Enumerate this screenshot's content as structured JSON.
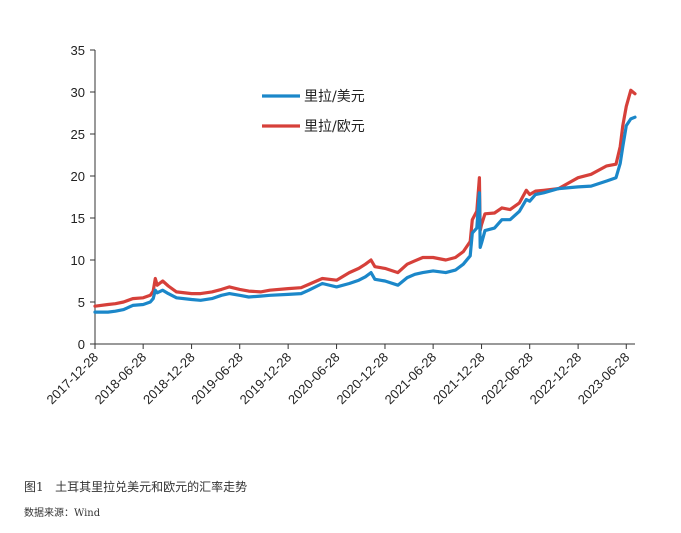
{
  "caption": {
    "figure_no": "图1",
    "title": "土耳其里拉兑美元和欧元的汇率走势"
  },
  "source": "数据来源：Wind",
  "chart_data": {
    "type": "line",
    "ylim": [
      0,
      35
    ],
    "yticks": [
      0,
      5,
      10,
      15,
      20,
      25,
      30,
      35
    ],
    "xlim": [
      "2017-12-28",
      "2023-07-31"
    ],
    "xticks": [
      "2017-12-28",
      "2018-06-28",
      "2018-12-28",
      "2019-06-28",
      "2019-12-28",
      "2020-06-28",
      "2020-12-28",
      "2021-06-28",
      "2021-12-28",
      "2022-06-28",
      "2022-12-28",
      "2023-06-28"
    ],
    "legend_position": "top-center",
    "grid": false,
    "series": [
      {
        "name": "里拉/美元",
        "color": "#1b87c9",
        "points": [
          [
            "2017-12-28",
            3.8
          ],
          [
            "2018-02-15",
            3.8
          ],
          [
            "2018-03-15",
            3.9
          ],
          [
            "2018-04-15",
            4.1
          ],
          [
            "2018-05-20",
            4.6
          ],
          [
            "2018-06-28",
            4.7
          ],
          [
            "2018-07-25",
            5.0
          ],
          [
            "2018-08-05",
            5.4
          ],
          [
            "2018-08-13",
            6.4
          ],
          [
            "2018-08-20",
            6.1
          ],
          [
            "2018-09-10",
            6.4
          ],
          [
            "2018-10-01",
            6.0
          ],
          [
            "2018-11-01",
            5.5
          ],
          [
            "2018-12-28",
            5.3
          ],
          [
            "2019-01-31",
            5.2
          ],
          [
            "2019-03-15",
            5.4
          ],
          [
            "2019-04-20",
            5.8
          ],
          [
            "2019-05-20",
            6.0
          ],
          [
            "2019-06-28",
            5.8
          ],
          [
            "2019-08-01",
            5.6
          ],
          [
            "2019-09-15",
            5.7
          ],
          [
            "2019-10-20",
            5.8
          ],
          [
            "2019-12-28",
            5.9
          ],
          [
            "2020-02-15",
            6.0
          ],
          [
            "2020-03-15",
            6.4
          ],
          [
            "2020-05-05",
            7.2
          ],
          [
            "2020-06-28",
            6.8
          ],
          [
            "2020-08-15",
            7.2
          ],
          [
            "2020-09-20",
            7.6
          ],
          [
            "2020-10-15",
            8.0
          ],
          [
            "2020-11-05",
            8.5
          ],
          [
            "2020-11-20",
            7.7
          ],
          [
            "2020-12-28",
            7.5
          ],
          [
            "2021-02-15",
            7.0
          ],
          [
            "2021-03-22",
            7.9
          ],
          [
            "2021-04-20",
            8.3
          ],
          [
            "2021-05-20",
            8.5
          ],
          [
            "2021-06-28",
            8.7
          ],
          [
            "2021-08-15",
            8.5
          ],
          [
            "2021-09-20",
            8.8
          ],
          [
            "2021-10-20",
            9.5
          ],
          [
            "2021-11-15",
            10.5
          ],
          [
            "2021-11-23",
            13.2
          ],
          [
            "2021-12-10",
            13.8
          ],
          [
            "2021-12-20",
            18.0
          ],
          [
            "2021-12-23",
            11.5
          ],
          [
            "2021-12-28",
            12.0
          ],
          [
            "2022-01-10",
            13.5
          ],
          [
            "2022-02-15",
            13.8
          ],
          [
            "2022-03-15",
            14.8
          ],
          [
            "2022-04-15",
            14.8
          ],
          [
            "2022-05-20",
            15.8
          ],
          [
            "2022-06-15",
            17.2
          ],
          [
            "2022-06-28",
            17.0
          ],
          [
            "2022-07-20",
            17.8
          ],
          [
            "2022-08-20",
            18.0
          ],
          [
            "2022-10-15",
            18.5
          ],
          [
            "2022-12-28",
            18.7
          ],
          [
            "2023-02-15",
            18.8
          ],
          [
            "2023-04-15",
            19.4
          ],
          [
            "2023-05-20",
            19.8
          ],
          [
            "2023-06-05",
            21.5
          ],
          [
            "2023-06-15",
            23.5
          ],
          [
            "2023-06-28",
            26.0
          ],
          [
            "2023-07-15",
            26.8
          ],
          [
            "2023-07-31",
            27.0
          ]
        ]
      },
      {
        "name": "里拉/欧元",
        "color": "#d6403a",
        "points": [
          [
            "2017-12-28",
            4.5
          ],
          [
            "2018-02-15",
            4.7
          ],
          [
            "2018-03-15",
            4.8
          ],
          [
            "2018-04-15",
            5.0
          ],
          [
            "2018-05-20",
            5.4
          ],
          [
            "2018-06-28",
            5.5
          ],
          [
            "2018-07-25",
            5.8
          ],
          [
            "2018-08-05",
            6.3
          ],
          [
            "2018-08-13",
            7.8
          ],
          [
            "2018-08-20",
            7.0
          ],
          [
            "2018-09-10",
            7.5
          ],
          [
            "2018-10-01",
            6.9
          ],
          [
            "2018-11-01",
            6.2
          ],
          [
            "2018-12-28",
            6.0
          ],
          [
            "2019-01-31",
            6.0
          ],
          [
            "2019-03-15",
            6.2
          ],
          [
            "2019-04-20",
            6.5
          ],
          [
            "2019-05-20",
            6.8
          ],
          [
            "2019-06-28",
            6.5
          ],
          [
            "2019-08-01",
            6.3
          ],
          [
            "2019-09-15",
            6.2
          ],
          [
            "2019-10-20",
            6.4
          ],
          [
            "2019-12-28",
            6.6
          ],
          [
            "2020-02-15",
            6.7
          ],
          [
            "2020-03-15",
            7.1
          ],
          [
            "2020-05-05",
            7.8
          ],
          [
            "2020-06-28",
            7.6
          ],
          [
            "2020-08-15",
            8.5
          ],
          [
            "2020-09-20",
            9.0
          ],
          [
            "2020-10-15",
            9.5
          ],
          [
            "2020-11-05",
            10.0
          ],
          [
            "2020-11-20",
            9.2
          ],
          [
            "2020-12-28",
            9.0
          ],
          [
            "2021-02-15",
            8.5
          ],
          [
            "2021-03-22",
            9.5
          ],
          [
            "2021-04-20",
            9.9
          ],
          [
            "2021-05-20",
            10.3
          ],
          [
            "2021-06-28",
            10.3
          ],
          [
            "2021-08-15",
            10.0
          ],
          [
            "2021-09-20",
            10.3
          ],
          [
            "2021-10-20",
            11.0
          ],
          [
            "2021-11-15",
            12.2
          ],
          [
            "2021-11-23",
            14.8
          ],
          [
            "2021-12-10",
            15.8
          ],
          [
            "2021-12-20",
            19.8
          ],
          [
            "2021-12-23",
            13.5
          ],
          [
            "2021-12-28",
            14.2
          ],
          [
            "2022-01-10",
            15.5
          ],
          [
            "2022-02-15",
            15.6
          ],
          [
            "2022-03-15",
            16.2
          ],
          [
            "2022-04-15",
            16.0
          ],
          [
            "2022-05-20",
            16.8
          ],
          [
            "2022-06-15",
            18.3
          ],
          [
            "2022-06-28",
            17.8
          ],
          [
            "2022-07-20",
            18.2
          ],
          [
            "2022-08-20",
            18.3
          ],
          [
            "2022-10-15",
            18.5
          ],
          [
            "2022-12-28",
            19.8
          ],
          [
            "2023-02-15",
            20.2
          ],
          [
            "2023-04-15",
            21.2
          ],
          [
            "2023-05-20",
            21.4
          ],
          [
            "2023-06-05",
            23.5
          ],
          [
            "2023-06-15",
            26.0
          ],
          [
            "2023-06-28",
            28.3
          ],
          [
            "2023-07-15",
            30.2
          ],
          [
            "2023-07-31",
            29.8
          ]
        ]
      }
    ]
  }
}
